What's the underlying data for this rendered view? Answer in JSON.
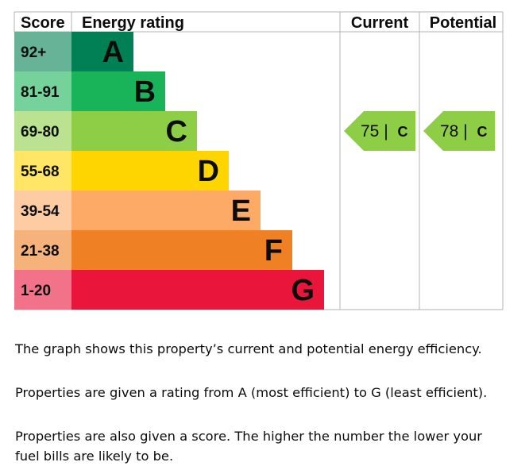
{
  "headers": {
    "score": "Score",
    "rating": "Energy rating",
    "current": "Current",
    "potential": "Potential"
  },
  "chart_data": {
    "type": "bar",
    "bands": [
      {
        "letter": "A",
        "range": "92+",
        "color": "#008054",
        "score_bg": "#66b398"
      },
      {
        "letter": "B",
        "range": "81-91",
        "color": "#19b459",
        "score_bg": "#75d29b"
      },
      {
        "letter": "C",
        "range": "69-80",
        "color": "#8dce46",
        "score_bg": "#bbe290"
      },
      {
        "letter": "D",
        "range": "55-68",
        "color": "#ffd500",
        "score_bg": "#ffe666"
      },
      {
        "letter": "E",
        "range": "39-54",
        "color": "#fcaa65",
        "score_bg": "#fdcca3"
      },
      {
        "letter": "F",
        "range": "21-38",
        "color": "#ef8023",
        "score_bg": "#f5b37b"
      },
      {
        "letter": "G",
        "range": "1-20",
        "color": "#e9153b",
        "score_bg": "#f27389"
      }
    ],
    "current": {
      "score": 75,
      "letter": "C"
    },
    "potential": {
      "score": 78,
      "letter": "C"
    }
  },
  "description": {
    "p1": "The graph shows this property’s current and potential energy efficiency.",
    "p2": "Properties are given a rating from A (most efficient) to G (least efficient).",
    "p3": "Properties are also given a score. The higher the number the lower your fuel bills are likely to be."
  }
}
